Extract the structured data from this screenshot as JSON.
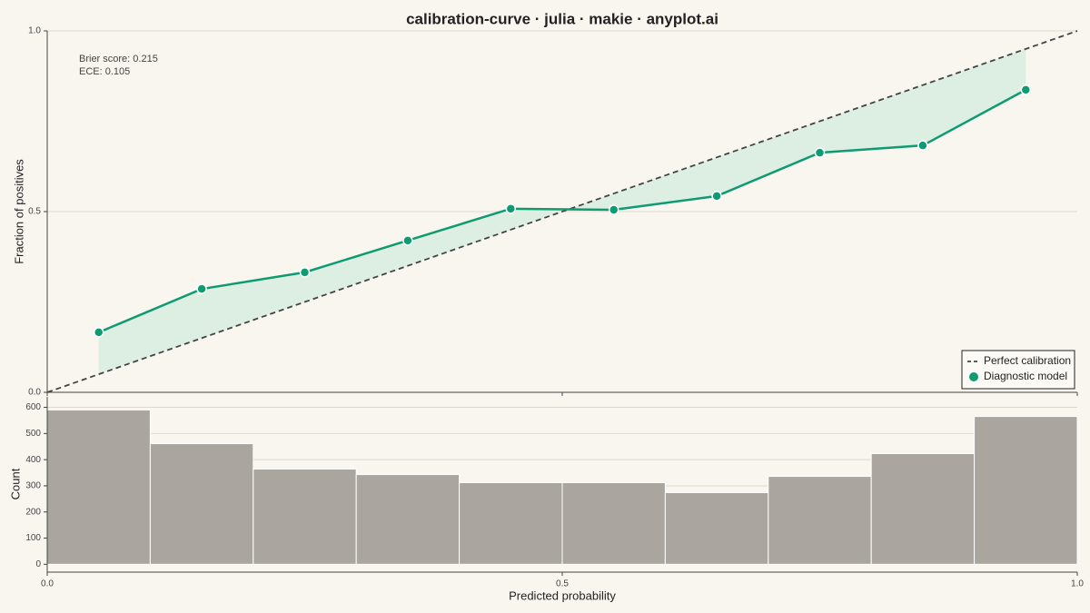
{
  "chart_data": [
    {
      "type": "line",
      "title": "calibration-curve · julia · makie · anyplot.ai",
      "ylabel": "Fraction of positives",
      "annotations": [
        "Brier score: 0.215",
        "ECE: 0.105"
      ],
      "xlim": [
        0,
        1
      ],
      "ylim": [
        0,
        1
      ],
      "xticks": [
        {
          "value": 0,
          "label": "0.0"
        },
        {
          "value": 0.5,
          "label": "0.5"
        },
        {
          "value": 1,
          "label": "1.0"
        }
      ],
      "yticks": [
        {
          "value": 0,
          "label": "0.0"
        },
        {
          "value": 0.5,
          "label": "0.5"
        },
        {
          "value": 1,
          "label": "1.0"
        }
      ],
      "grid": true,
      "legend": "lower right",
      "series": [
        {
          "name": "Perfect calibration",
          "color": "#444444",
          "dashed": true,
          "x": [
            0,
            1
          ],
          "values": [
            0,
            1
          ]
        },
        {
          "name": "Diagnostic model",
          "color": "#0f9b72",
          "markers": true,
          "gap_fill": "#dcefe2",
          "x": [
            0.05,
            0.15,
            0.25,
            0.35,
            0.45,
            0.55,
            0.65,
            0.75,
            0.85,
            0.95
          ],
          "values": [
            0.166,
            0.286,
            0.332,
            0.42,
            0.508,
            0.505,
            0.543,
            0.663,
            0.683,
            0.837
          ]
        }
      ]
    },
    {
      "type": "histogram",
      "xlabel": "Predicted probability",
      "ylabel": "Count",
      "xlim": [
        0,
        1
      ],
      "ylim": [
        -30,
        640
      ],
      "xticks": [
        {
          "value": 0,
          "label": "0.0"
        },
        {
          "value": 0.5,
          "label": "0.5"
        },
        {
          "value": 1,
          "label": "1.0"
        }
      ],
      "yticks": [
        0,
        100,
        200,
        300,
        400,
        500,
        600
      ],
      "grid": true,
      "color": "#aaa69f",
      "bins": [
        0,
        0.1,
        0.2,
        0.3,
        0.4,
        0.5,
        0.6,
        0.7,
        0.8,
        0.9,
        1.0
      ],
      "values": [
        590,
        461,
        364,
        343,
        312,
        312,
        274,
        336,
        423,
        565
      ]
    }
  ]
}
